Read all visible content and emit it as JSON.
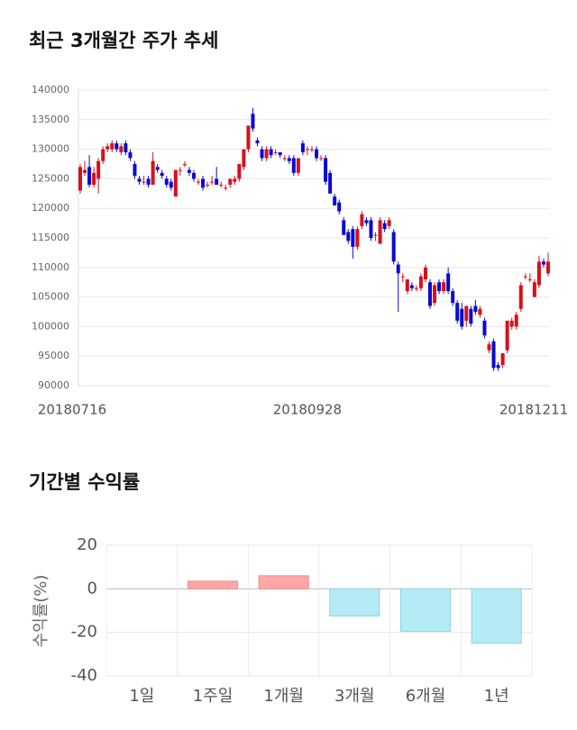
{
  "chart_data": [
    {
      "type": "candlestick",
      "title": "최근 3개월간 주가 추세",
      "categories": [
        "20180716",
        null,
        null,
        null,
        null,
        null,
        null,
        null,
        null,
        null,
        null,
        null,
        null,
        null,
        null,
        null,
        null,
        null,
        null,
        null,
        null,
        null,
        null,
        null,
        null,
        null,
        null,
        null,
        null,
        null,
        null,
        null,
        null,
        null,
        null,
        null,
        null,
        null,
        null,
        null,
        null,
        null,
        null,
        null,
        null,
        null,
        null,
        null,
        null,
        null,
        "20180928",
        null,
        null,
        null,
        null,
        null,
        null,
        null,
        null,
        null,
        null,
        null,
        null,
        null,
        null,
        null,
        null,
        null,
        null,
        null,
        null,
        null,
        null,
        null,
        null,
        null,
        null,
        null,
        null,
        null,
        null,
        null,
        null,
        null,
        null,
        null,
        null,
        null,
        null,
        null,
        null,
        null,
        null,
        null,
        null,
        null,
        null,
        null,
        null,
        null,
        null,
        null,
        null,
        "20181211"
      ],
      "ohlc": [
        [
          123000,
          127500,
          122500,
          127000
        ],
        [
          126000,
          128000,
          125500,
          126500
        ],
        [
          127000,
          129000,
          123500,
          124000
        ],
        [
          124000,
          127000,
          123500,
          126000
        ],
        [
          125000,
          128500,
          122500,
          128000
        ],
        [
          128000,
          130500,
          127500,
          130000
        ],
        [
          130000,
          131000,
          129500,
          130500
        ],
        [
          130000,
          131500,
          129500,
          131000
        ],
        [
          131000,
          131500,
          129500,
          130000
        ],
        [
          129500,
          131000,
          129000,
          130500
        ],
        [
          131000,
          131500,
          129000,
          129500
        ],
        [
          129500,
          130000,
          128000,
          128500
        ],
        [
          127500,
          128000,
          125000,
          125500
        ],
        [
          125000,
          125500,
          124000,
          124500
        ],
        [
          124500,
          125500,
          124000,
          124500
        ],
        [
          125000,
          125500,
          123500,
          124000
        ],
        [
          124000,
          129500,
          124000,
          128000
        ],
        [
          127000,
          127500,
          126000,
          126500
        ],
        [
          126000,
          126500,
          125000,
          125500
        ],
        [
          125000,
          125500,
          123500,
          124000
        ],
        [
          124500,
          125000,
          123000,
          123500
        ],
        [
          122000,
          126500,
          122000,
          126500
        ],
        [
          126500,
          127000,
          125500,
          126500
        ],
        [
          127500,
          128000,
          127000,
          127500
        ],
        [
          126500,
          127000,
          125500,
          126000
        ],
        [
          126000,
          126500,
          124500,
          125000
        ],
        [
          124500,
          125000,
          124000,
          124500
        ],
        [
          125000,
          125500,
          123000,
          123500
        ],
        [
          124000,
          124500,
          123500,
          124000
        ],
        [
          124500,
          125500,
          124000,
          124500
        ],
        [
          125000,
          127000,
          124000,
          124000
        ],
        [
          124000,
          124500,
          123500,
          124000
        ],
        [
          123500,
          124000,
          123000,
          123500
        ],
        [
          124000,
          125000,
          123500,
          125000
        ],
        [
          124500,
          125500,
          124000,
          125000
        ],
        [
          125000,
          127500,
          124500,
          127500
        ],
        [
          127000,
          130000,
          126500,
          130000
        ],
        [
          130000,
          134000,
          129500,
          134000
        ],
        [
          136000,
          137000,
          133000,
          133500
        ],
        [
          131500,
          132000,
          130500,
          131000
        ],
        [
          130000,
          130500,
          128000,
          128500
        ],
        [
          128500,
          130500,
          128000,
          130000
        ],
        [
          130000,
          130500,
          128500,
          129000
        ],
        [
          129500,
          130000,
          129000,
          129500
        ],
        [
          129500,
          129500,
          128500,
          129000
        ],
        [
          128500,
          129000,
          128000,
          128500
        ],
        [
          128500,
          129000,
          127500,
          128000
        ],
        [
          128500,
          129000,
          125500,
          126000
        ],
        [
          126000,
          128500,
          125500,
          128500
        ],
        [
          131000,
          131500,
          129000,
          129500
        ],
        [
          130000,
          130500,
          129000,
          130000
        ],
        [
          130000,
          130500,
          129500,
          130000
        ],
        [
          130000,
          130500,
          128000,
          128500
        ],
        [
          128500,
          129000,
          128000,
          128500
        ],
        [
          128500,
          129000,
          124000,
          124500
        ],
        [
          126000,
          126500,
          122500,
          122500
        ],
        [
          122000,
          122500,
          120500,
          120500
        ],
        [
          121000,
          121500,
          119000,
          119500
        ],
        [
          118000,
          118500,
          115500,
          115500
        ],
        [
          116000,
          116500,
          114000,
          114500
        ],
        [
          116500,
          117000,
          111500,
          113500
        ],
        [
          113500,
          117000,
          113000,
          116500
        ],
        [
          117000,
          119500,
          116500,
          119000
        ],
        [
          118000,
          118500,
          117000,
          117500
        ],
        [
          118000,
          118500,
          114500,
          115000
        ],
        [
          115500,
          116000,
          114500,
          115500
        ],
        [
          114000,
          118500,
          114000,
          118000
        ],
        [
          117500,
          118000,
          116000,
          116500
        ],
        [
          117000,
          118500,
          116500,
          118000
        ],
        [
          116000,
          116500,
          110500,
          111000
        ],
        [
          110500,
          111000,
          102500,
          109000
        ],
        [
          108500,
          109000,
          107500,
          108500
        ],
        [
          106000,
          108000,
          105500,
          108000
        ],
        [
          107000,
          107500,
          106000,
          106500
        ],
        [
          106500,
          107000,
          106000,
          106500
        ],
        [
          106500,
          109000,
          106000,
          108500
        ],
        [
          108000,
          110500,
          107500,
          110000
        ],
        [
          107500,
          108000,
          103000,
          103500
        ],
        [
          104000,
          107500,
          103500,
          107000
        ],
        [
          107500,
          108000,
          105500,
          106000
        ],
        [
          106000,
          108000,
          105500,
          107500
        ],
        [
          109000,
          110000,
          105500,
          106000
        ],
        [
          106000,
          106500,
          103500,
          104000
        ],
        [
          104000,
          104500,
          100500,
          101000
        ],
        [
          103000,
          104000,
          99500,
          100000
        ],
        [
          101000,
          103500,
          100000,
          103500
        ],
        [
          103000,
          103500,
          100000,
          100500
        ],
        [
          103500,
          104500,
          102000,
          102500
        ],
        [
          102000,
          103500,
          101500,
          103000
        ],
        [
          101000,
          101500,
          98000,
          98500
        ],
        [
          96000,
          97500,
          95500,
          97000
        ],
        [
          97500,
          98000,
          92500,
          93000
        ],
        [
          93500,
          94000,
          92500,
          93000
        ],
        [
          93500,
          95500,
          93000,
          95500
        ],
        [
          96000,
          101000,
          95500,
          101000
        ],
        [
          100000,
          101500,
          99500,
          101000
        ],
        [
          100000,
          102500,
          99500,
          102000
        ],
        [
          103000,
          107500,
          102500,
          107000
        ],
        [
          108500,
          109000,
          108000,
          108500
        ],
        [
          108000,
          109000,
          107500,
          108000
        ],
        [
          105000,
          108000,
          105000,
          107500
        ],
        [
          107000,
          112000,
          106500,
          111000
        ],
        [
          111000,
          111500,
          110000,
          110500
        ],
        [
          109000,
          112500,
          108500,
          111000
        ]
      ],
      "up_color": "#d7101b",
      "down_color": "#0a0ad2",
      "ylim": [
        90000,
        140000
      ],
      "yticks": [
        90000,
        95000,
        100000,
        105000,
        110000,
        115000,
        120000,
        125000,
        130000,
        135000,
        140000
      ],
      "grid": true
    },
    {
      "type": "bar",
      "title": "기간별 수익률",
      "y_label": "수익률(%)",
      "categories": [
        "1일",
        "1주일",
        "1개월",
        "3개월",
        "6개월",
        "1년"
      ],
      "values": [
        0,
        3.5,
        6,
        -12.5,
        -19.5,
        -25
      ],
      "positive_color": "#ffa6a6",
      "negative_color": "#b4ebf5",
      "ylim": [
        -40,
        20
      ],
      "yticks": [
        -40,
        -20,
        0,
        20
      ],
      "grid": true
    }
  ]
}
